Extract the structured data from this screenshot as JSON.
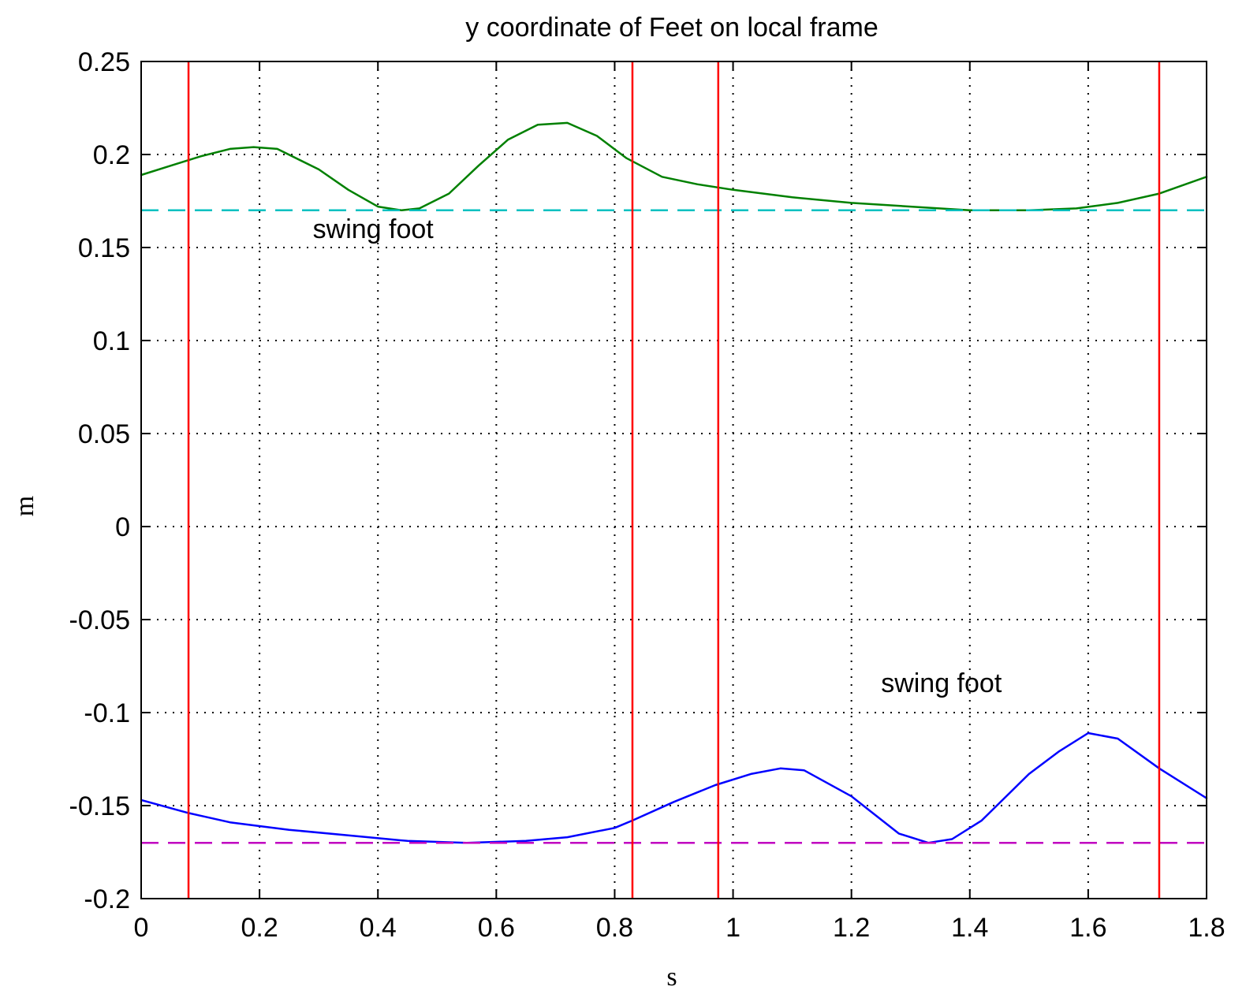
{
  "chart_data": {
    "type": "line",
    "title": "y coordinate of Feet on local frame",
    "xlabel": "s",
    "ylabel": "m",
    "xlim": [
      0,
      1.8
    ],
    "ylim": [
      -0.2,
      0.25
    ],
    "xticks": [
      0,
      0.2,
      0.4,
      0.6,
      0.8,
      1,
      1.2,
      1.4,
      1.6,
      1.8
    ],
    "xtick_labels": [
      "0",
      "0.2",
      "0.4",
      "0.6",
      "0.8",
      "1",
      "1.2",
      "1.4",
      "1.6",
      "1.8"
    ],
    "yticks": [
      -0.2,
      -0.15,
      -0.1,
      -0.05,
      0,
      0.05,
      0.1,
      0.15,
      0.2,
      0.25
    ],
    "ytick_labels": [
      "-0.2",
      "-0.15",
      "-0.1",
      "-0.05",
      "0",
      "0.05",
      "0.1",
      "0.15",
      "0.2",
      "0.25"
    ],
    "grid": true,
    "series": [
      {
        "color": "#008000",
        "style": "solid",
        "x": [
          0,
          0.05,
          0.1,
          0.15,
          0.19,
          0.23,
          0.3,
          0.35,
          0.4,
          0.44,
          0.47,
          0.52,
          0.57,
          0.62,
          0.67,
          0.72,
          0.77,
          0.82,
          0.88,
          0.94,
          1.0,
          1.1,
          1.2,
          1.3,
          1.4,
          1.5,
          1.58,
          1.65,
          1.72,
          1.8
        ],
        "y": [
          0.189,
          0.194,
          0.199,
          0.203,
          0.204,
          0.203,
          0.192,
          0.181,
          0.172,
          0.17,
          0.171,
          0.179,
          0.194,
          0.208,
          0.216,
          0.217,
          0.21,
          0.198,
          0.188,
          0.184,
          0.181,
          0.177,
          0.174,
          0.172,
          0.17,
          0.17,
          0.171,
          0.174,
          0.179,
          0.188
        ]
      },
      {
        "color": "#0000ff",
        "style": "solid",
        "x": [
          0,
          0.08,
          0.15,
          0.25,
          0.35,
          0.45,
          0.55,
          0.65,
          0.72,
          0.8,
          0.83,
          0.9,
          0.97,
          1.03,
          1.08,
          1.12,
          1.2,
          1.28,
          1.33,
          1.37,
          1.42,
          1.5,
          1.55,
          1.6,
          1.65,
          1.72,
          1.8
        ],
        "y": [
          -0.147,
          -0.154,
          -0.159,
          -0.163,
          -0.166,
          -0.169,
          -0.17,
          -0.169,
          -0.167,
          -0.162,
          -0.158,
          -0.148,
          -0.139,
          -0.133,
          -0.13,
          -0.131,
          -0.145,
          -0.165,
          -0.17,
          -0.168,
          -0.158,
          -0.133,
          -0.121,
          -0.111,
          -0.114,
          -0.13,
          -0.146
        ]
      },
      {
        "color": "#00c0c0",
        "style": "dashed",
        "x": [
          0,
          1.8
        ],
        "y": [
          0.17,
          0.17
        ]
      },
      {
        "color": "#c000c0",
        "style": "dashed",
        "x": [
          0,
          1.8
        ],
        "y": [
          -0.17,
          -0.17
        ]
      }
    ],
    "vertical_lines": {
      "color": "#ff0000",
      "x": [
        0.08,
        0.83,
        0.975,
        1.72
      ]
    },
    "annotations": [
      {
        "text": "swing foot",
        "x": 0.29,
        "y": 0.155
      },
      {
        "text": "swing foot",
        "x": 1.25,
        "y": -0.089
      }
    ]
  }
}
